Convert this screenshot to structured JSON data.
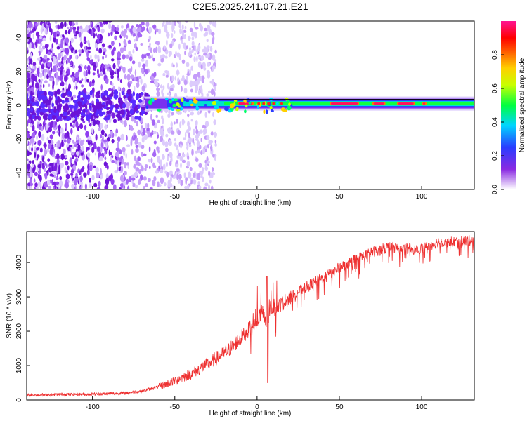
{
  "figure_title": "C2E5.2025.241.07.21.E21",
  "chart_data": [
    {
      "type": "heatmap",
      "title": "C2E5.2025.241.07.21.E21",
      "xlabel": "Height of straight line (km)",
      "ylabel": "Frequency (Hz)",
      "xlim": [
        -140,
        132
      ],
      "ylim": [
        -50,
        50
      ],
      "xticks": [
        -100,
        -50,
        0,
        50,
        100
      ],
      "yticks": [
        -40,
        -20,
        0,
        20,
        40
      ],
      "colorbar": {
        "label": "Normalized spectral amplitude",
        "range": [
          0,
          1
        ],
        "ticks": [
          0.0,
          0.2,
          0.4,
          0.6,
          0.8
        ],
        "tick_labels": [
          "0.0",
          "0.2",
          "0.4",
          "0.6",
          "0.8"
        ],
        "colormap": [
          "#ffffff",
          "#6a0dad",
          "#1e3cff",
          "#00d5ff",
          "#00ff00",
          "#ffff00",
          "#ff7f00",
          "#ff0000",
          "#ff1493"
        ]
      },
      "features": [
        {
          "name": "scattered noise",
          "x_range": [
            -140,
            -30
          ],
          "freq_range": [
            -50,
            50
          ]
        },
        {
          "name": "carrier line",
          "x_range": [
            -68,
            132
          ],
          "frequency_hz": 1
        }
      ],
      "reference_line_hz": 3.5
    },
    {
      "type": "line",
      "xlabel": "Height of straight line (km)",
      "ylabel": "SNR (10 * v/v)",
      "xlim": [
        -140,
        132
      ],
      "ylim": [
        0,
        4900
      ],
      "xticks": [
        -100,
        -50,
        0,
        50,
        100
      ],
      "yticks": [
        0,
        1000,
        2000,
        3000,
        4000
      ],
      "series": [
        {
          "name": "SNR",
          "color": "#ee3030",
          "x": [
            -140,
            -120,
            -100,
            -80,
            -70,
            -60,
            -50,
            -40,
            -35,
            -30,
            -25,
            -20,
            -15,
            -10,
            -5,
            0,
            3,
            6,
            8,
            10,
            15,
            20,
            30,
            40,
            50,
            60,
            70,
            80,
            90,
            100,
            110,
            120,
            132
          ],
          "y": [
            140,
            160,
            170,
            200,
            260,
            380,
            560,
            760,
            900,
            1050,
            1200,
            1350,
            1550,
            1800,
            2050,
            2300,
            2600,
            2100,
            2700,
            2650,
            2800,
            3000,
            3300,
            3550,
            3850,
            4100,
            4300,
            4450,
            4400,
            4400,
            4600,
            4600,
            4650
          ],
          "peak": {
            "x": 6,
            "y": 3600
          },
          "dip": {
            "x": 6,
            "y": 500
          }
        }
      ]
    }
  ]
}
